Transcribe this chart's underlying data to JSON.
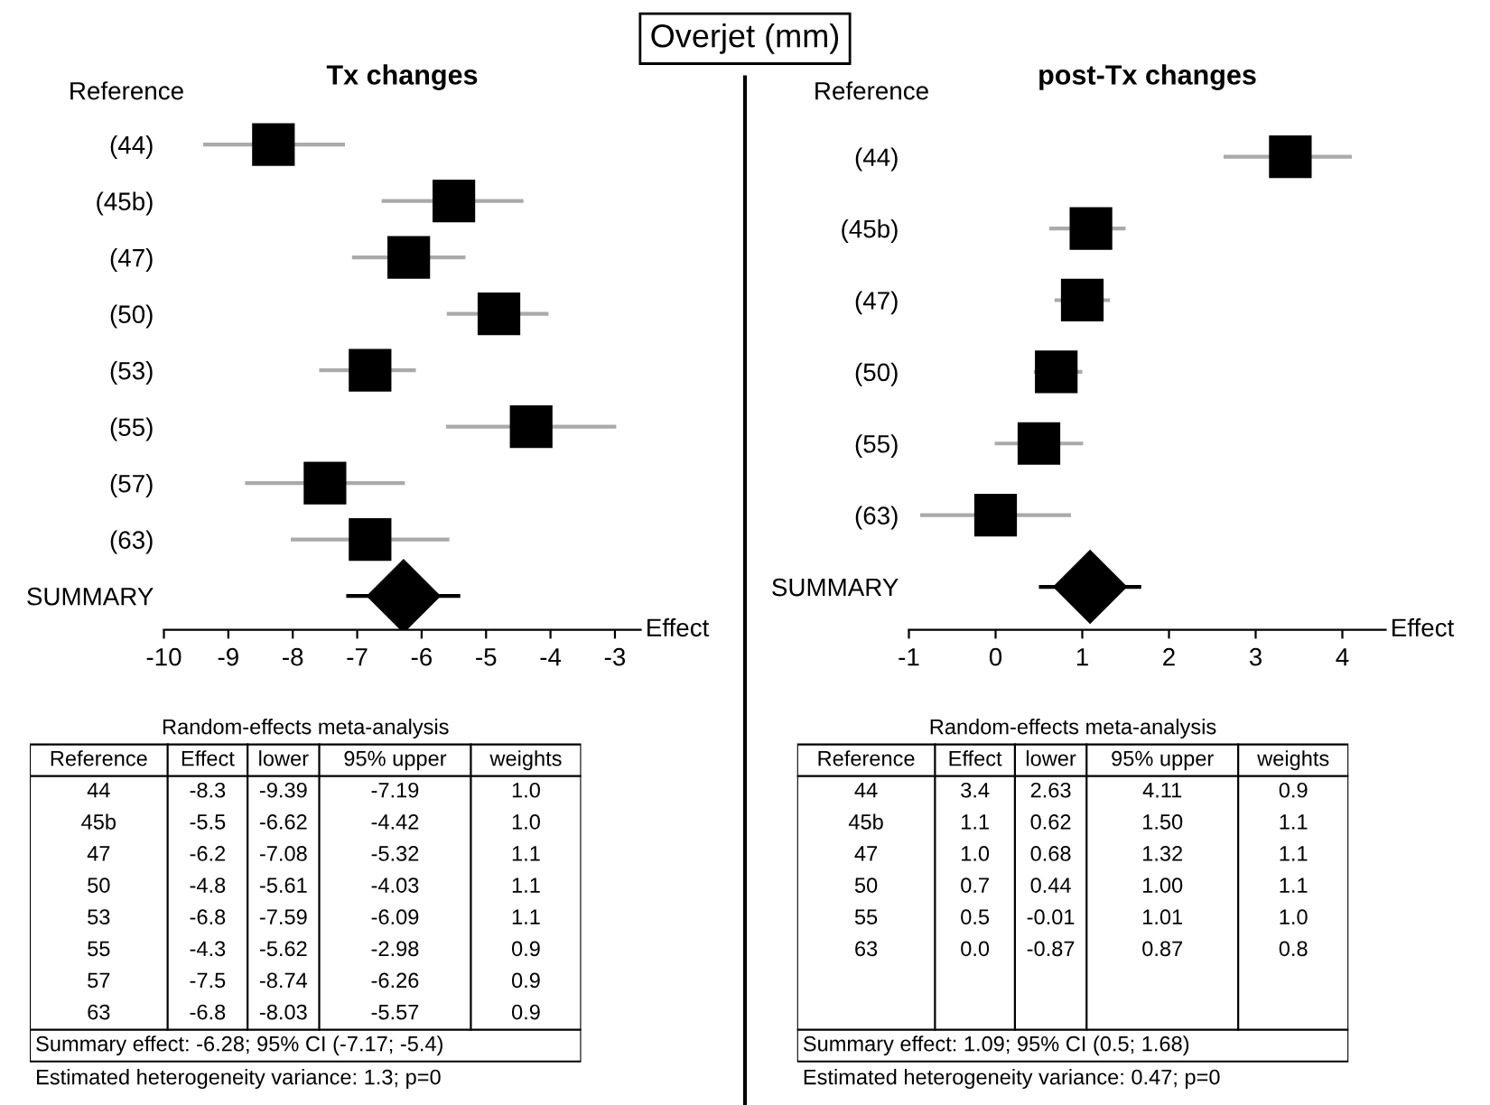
{
  "chart_data": [
    {
      "type": "scatter",
      "orientation": "horizontal",
      "title": "Tx changes",
      "ylabel": "Reference",
      "xlabel": "Effect",
      "categories": [
        "(44)",
        "(45b)",
        "(47)",
        "(50)",
        "(53)",
        "(55)",
        "(57)",
        "(63)",
        "SUMMARY"
      ],
      "series": [
        {
          "color": "#000000",
          "marker": "square",
          "values": [
            -8.3,
            -5.5,
            -6.2,
            -4.8,
            -6.8,
            -4.3,
            -7.5,
            -6.8,
            null
          ],
          "errors": [
            [
              -9.39,
              -7.19
            ],
            [
              -6.62,
              -4.42
            ],
            [
              -7.08,
              -5.32
            ],
            [
              -5.61,
              -4.03
            ],
            [
              -7.59,
              -6.09
            ],
            [
              -5.62,
              -2.98
            ],
            [
              -8.74,
              -6.26
            ],
            [
              -8.03,
              -5.57
            ],
            null
          ]
        },
        {
          "color": "#000000",
          "marker": "diamond",
          "values": [
            null,
            null,
            null,
            null,
            null,
            null,
            null,
            null,
            -6.28
          ],
          "errors": [
            null,
            null,
            null,
            null,
            null,
            null,
            null,
            null,
            [
              -7.17,
              -5.4
            ]
          ]
        }
      ],
      "xlim": [
        -10,
        -2.6
      ],
      "xticks": [
        -10,
        -9,
        -8,
        -7,
        -6,
        -5,
        -4,
        -3
      ],
      "grid": false,
      "legend": false,
      "annotations": [
        "Overjet (mm)",
        "Random-effects meta-analysis",
        "Reference",
        "Effect",
        "lower",
        "95% upper",
        "weights",
        "44",
        "-8.3",
        "-9.39",
        "-7.19",
        "1.0",
        "45b",
        "-5.5",
        "-6.62",
        "-4.42",
        "1.0",
        "47",
        "-6.2",
        "-7.08",
        "-5.32",
        "1.1",
        "50",
        "-4.8",
        "-5.61",
        "-4.03",
        "1.1",
        "53",
        "-6.8",
        "-7.59",
        "-6.09",
        "1.1",
        "55",
        "-4.3",
        "-5.62",
        "-2.98",
        "0.9",
        "57",
        "-7.5",
        "-8.74",
        "-6.26",
        "0.9",
        "63",
        "-6.8",
        "-8.03",
        "-5.57",
        "0.9",
        "Summary effect: -6.28; 95% CI (-7.17; -5.4)",
        "Estimated heterogeneity variance: 1.3; p=0"
      ]
    },
    {
      "type": "scatter",
      "orientation": "horizontal",
      "title": "post-Tx changes",
      "ylabel": "Reference",
      "xlabel": "Effect",
      "categories": [
        "(44)",
        "(45b)",
        "(47)",
        "(50)",
        "(55)",
        "(63)",
        "SUMMARY"
      ],
      "series": [
        {
          "color": "#000000",
          "marker": "square",
          "values": [
            3.4,
            1.1,
            1.0,
            0.7,
            0.5,
            0.0,
            null
          ],
          "errors": [
            [
              2.63,
              4.11
            ],
            [
              0.62,
              1.5
            ],
            [
              0.68,
              1.32
            ],
            [
              0.44,
              1.0
            ],
            [
              -0.01,
              1.01
            ],
            [
              -0.87,
              0.87
            ],
            null
          ]
        },
        {
          "color": "#000000",
          "marker": "diamond",
          "values": [
            null,
            null,
            null,
            null,
            null,
            null,
            1.09
          ],
          "errors": [
            null,
            null,
            null,
            null,
            null,
            null,
            [
              0.5,
              1.68
            ]
          ]
        }
      ],
      "xlim": [
        -1,
        4.5
      ],
      "xticks": [
        -1,
        0,
        1,
        2,
        3,
        4
      ],
      "grid": false,
      "legend": false,
      "annotations": [
        "Random-effects meta-analysis",
        "Reference",
        "Effect",
        "lower",
        "95% upper",
        "weights",
        "44",
        "3.4",
        "2.63",
        "4.11",
        "0.9",
        "45b",
        "1.1",
        "0.62",
        "1.50",
        "1.1",
        "47",
        "1.0",
        "0.68",
        "1.32",
        "1.1",
        "50",
        "0.7",
        "0.44",
        "1.00",
        "1.1",
        "55",
        "0.5",
        "-0.01",
        "1.01",
        "1.0",
        "63",
        "0.0",
        "-0.87",
        "0.87",
        "0.8",
        "Summary effect: 1.09; 95% CI (0.5; 1.68)",
        "Estimated heterogeneity variance: 0.47; p=0"
      ]
    }
  ]
}
